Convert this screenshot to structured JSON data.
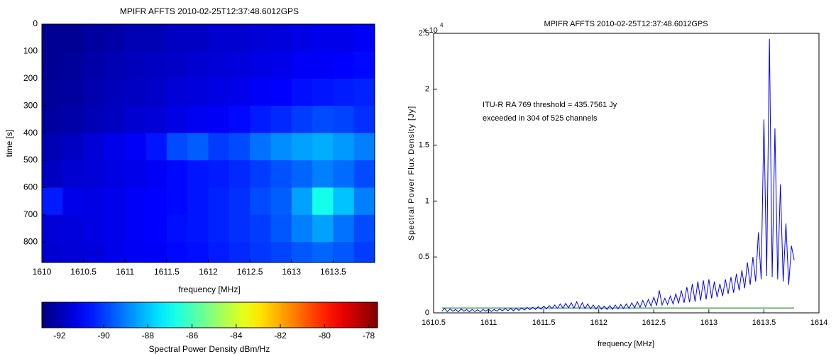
{
  "chart_data": [
    {
      "type": "heatmap",
      "title": "MPIFR AFFTS 2010-02-25T12:37:48.6012GPS",
      "xlabel": "frequency [MHz]",
      "ylabel": "time [s]",
      "xlim": [
        1610,
        1614
      ],
      "xticks": [
        1610,
        1610.5,
        1611,
        1611.5,
        1612,
        1612.5,
        1613,
        1613.5
      ],
      "ylim": [
        0,
        875
      ],
      "yticks": [
        0,
        100,
        200,
        300,
        400,
        500,
        600,
        700,
        800
      ],
      "y_reversed": true,
      "xbins": [
        1610,
        1610.25,
        1610.5,
        1610.75,
        1611,
        1611.25,
        1611.5,
        1611.75,
        1612,
        1612.25,
        1612.5,
        1612.75,
        1613,
        1613.25,
        1613.5,
        1613.75,
        1614
      ],
      "ybins": [
        0,
        100,
        200,
        300,
        400,
        500,
        600,
        700,
        800,
        875
      ],
      "z": [
        [
          -92.5,
          -92.5,
          -92.3,
          -92.2,
          -92,
          -92,
          -91.8,
          -91.8,
          -91.6,
          -91.6,
          -91.5,
          -91.4,
          -91.3,
          -91.2,
          -91.2,
          -91
        ],
        [
          -92.5,
          -92.4,
          -92.2,
          -92,
          -91.9,
          -91.8,
          -91.7,
          -91.6,
          -91.5,
          -91.4,
          -91.3,
          -91.2,
          -91,
          -91,
          -90.9,
          -90.8
        ],
        [
          -92.4,
          -92.3,
          -92.1,
          -91.9,
          -91.8,
          -91.7,
          -91.5,
          -91.4,
          -91.3,
          -91.2,
          -91,
          -90.9,
          -90.7,
          -90.6,
          -90.5,
          -90.4
        ],
        [
          -92.3,
          -92.2,
          -92,
          -91.8,
          -91.6,
          -91.5,
          -91.3,
          -91.1,
          -91,
          -90.8,
          -90.5,
          -90.3,
          -90,
          -89.8,
          -89.9,
          -90.2
        ],
        [
          -92,
          -91.8,
          -91.5,
          -91.2,
          -91,
          -90.6,
          -89.8,
          -89.5,
          -90,
          -89.8,
          -89.2,
          -88.8,
          -88.5,
          -88.3,
          -88.6,
          -89
        ],
        [
          -91.8,
          -91.6,
          -91.5,
          -91.3,
          -91.2,
          -91,
          -90.8,
          -90.6,
          -90.5,
          -90.3,
          -90,
          -89.7,
          -89.4,
          -89,
          -89.3,
          -89.8
        ],
        [
          -90.5,
          -91.2,
          -91.3,
          -91.2,
          -91,
          -90.9,
          -90.8,
          -90.6,
          -90.4,
          -90.2,
          -89.8,
          -89.5,
          -88.5,
          -86.8,
          -88,
          -89
        ],
        [
          -91.5,
          -91.4,
          -91.3,
          -91.2,
          -91,
          -90.9,
          -90.7,
          -90.6,
          -90.4,
          -90.2,
          -90,
          -89.6,
          -89,
          -88.5,
          -89.2,
          -89.8
        ],
        [
          -91.6,
          -91.5,
          -91.4,
          -91.2,
          -91.1,
          -91,
          -90.8,
          -90.7,
          -90.5,
          -90.3,
          -90.1,
          -89.9,
          -89.6,
          -89.4,
          -89.6,
          -90
        ]
      ],
      "colormap": "jet",
      "clim": [
        -92.8,
        -77.6
      ],
      "cticks": [
        -92,
        -90,
        -88,
        -86,
        -84,
        -82,
        -80,
        -78
      ],
      "clabel": "Spectral Power Density dBm/Hz"
    },
    {
      "type": "line",
      "title": "MPIFR AFFTS 2010-02-25T12:37:48.6012GPS",
      "xlabel": "frequency [MHz]",
      "ylabel": "Spectral Power Flux Density [Jy]",
      "y_scale_label": "x 10",
      "y_scale_exponent": "4",
      "annotations": [
        "ITU-R RA 769 threshold = 435.7561 Jy",
        "exceeded in 304 of 525 channels"
      ],
      "xlim": [
        1610.5,
        1614
      ],
      "xticks": [
        1610.5,
        1611,
        1611.5,
        1612,
        1612.5,
        1613,
        1613.5,
        1614
      ],
      "ylim": [
        0,
        25000
      ],
      "yticks": [
        {
          "value": 0,
          "label": "0"
        },
        {
          "value": 5000,
          "label": "0.5"
        },
        {
          "value": 10000,
          "label": "1"
        },
        {
          "value": 15000,
          "label": "1.5"
        },
        {
          "value": 20000,
          "label": "2"
        },
        {
          "value": 25000,
          "label": "2.5"
        }
      ],
      "x": [
        1610.575,
        1610.6,
        1610.625,
        1610.65,
        1610.675,
        1610.7,
        1610.725,
        1610.75,
        1610.775,
        1610.8,
        1610.825,
        1610.85,
        1610.875,
        1610.9,
        1610.925,
        1610.95,
        1610.975,
        1611,
        1611.025,
        1611.05,
        1611.075,
        1611.1,
        1611.125,
        1611.15,
        1611.175,
        1611.2,
        1611.225,
        1611.25,
        1611.275,
        1611.3,
        1611.325,
        1611.35,
        1611.375,
        1611.4,
        1611.425,
        1611.45,
        1611.475,
        1611.5,
        1611.525,
        1611.55,
        1611.575,
        1611.6,
        1611.625,
        1611.65,
        1611.675,
        1611.7,
        1611.725,
        1611.75,
        1611.775,
        1611.8,
        1611.825,
        1611.85,
        1611.875,
        1611.9,
        1611.925,
        1611.95,
        1611.975,
        1612,
        1612.025,
        1612.05,
        1612.075,
        1612.1,
        1612.125,
        1612.15,
        1612.175,
        1612.2,
        1612.225,
        1612.25,
        1612.275,
        1612.3,
        1612.325,
        1612.35,
        1612.375,
        1612.4,
        1612.425,
        1612.45,
        1612.475,
        1612.5,
        1612.525,
        1612.55,
        1612.575,
        1612.6,
        1612.625,
        1612.65,
        1612.675,
        1612.7,
        1612.725,
        1612.75,
        1612.775,
        1612.8,
        1612.825,
        1612.85,
        1612.875,
        1612.9,
        1612.925,
        1612.95,
        1612.975,
        1613,
        1613.025,
        1613.05,
        1613.075,
        1613.1,
        1613.125,
        1613.15,
        1613.175,
        1613.2,
        1613.225,
        1613.25,
        1613.275,
        1613.3,
        1613.325,
        1613.35,
        1613.375,
        1613.4,
        1613.425,
        1613.45,
        1613.475,
        1613.5,
        1613.525,
        1613.55,
        1613.575,
        1613.6,
        1613.625,
        1613.65,
        1613.675,
        1613.7,
        1613.725,
        1613.75,
        1613.775
      ],
      "series": [
        {
          "color": "#0000ff",
          "values": [
            150,
            400,
            100,
            350,
            150,
            300,
            100,
            350,
            150,
            300,
            100,
            300,
            120,
            280,
            100,
            300,
            150,
            320,
            130,
            300,
            150,
            350,
            180,
            380,
            200,
            400,
            180,
            420,
            220,
            450,
            250,
            480,
            280,
            500,
            300,
            550,
            320,
            600,
            350,
            650,
            380,
            700,
            400,
            800,
            420,
            850,
            450,
            900,
            430,
            1000,
            400,
            900,
            380,
            800,
            350,
            700,
            330,
            650,
            320,
            600,
            300,
            650,
            320,
            700,
            350,
            750,
            380,
            800,
            400,
            900,
            450,
            1000,
            500,
            1100,
            550,
            1200,
            600,
            1400,
            650,
            2000,
            700,
            1300,
            750,
            1500,
            800,
            1700,
            850,
            2000,
            900,
            2300,
            950,
            2600,
            1000,
            2800,
            1100,
            2900,
            1200,
            3000,
            1300,
            2800,
            1400,
            2600,
            1500,
            3000,
            1700,
            3200,
            1800,
            3500,
            2000,
            3800,
            2200,
            4500,
            2500,
            5000,
            2800,
            7200,
            3000,
            17300,
            3300,
            24500,
            3200,
            16500,
            3000,
            11500,
            2800,
            8000,
            2500,
            6000,
            4700
          ]
        }
      ],
      "threshold": {
        "value": 435.7561,
        "x": [
          1610.575,
          1613.775
        ],
        "color": "#008000"
      }
    }
  ]
}
